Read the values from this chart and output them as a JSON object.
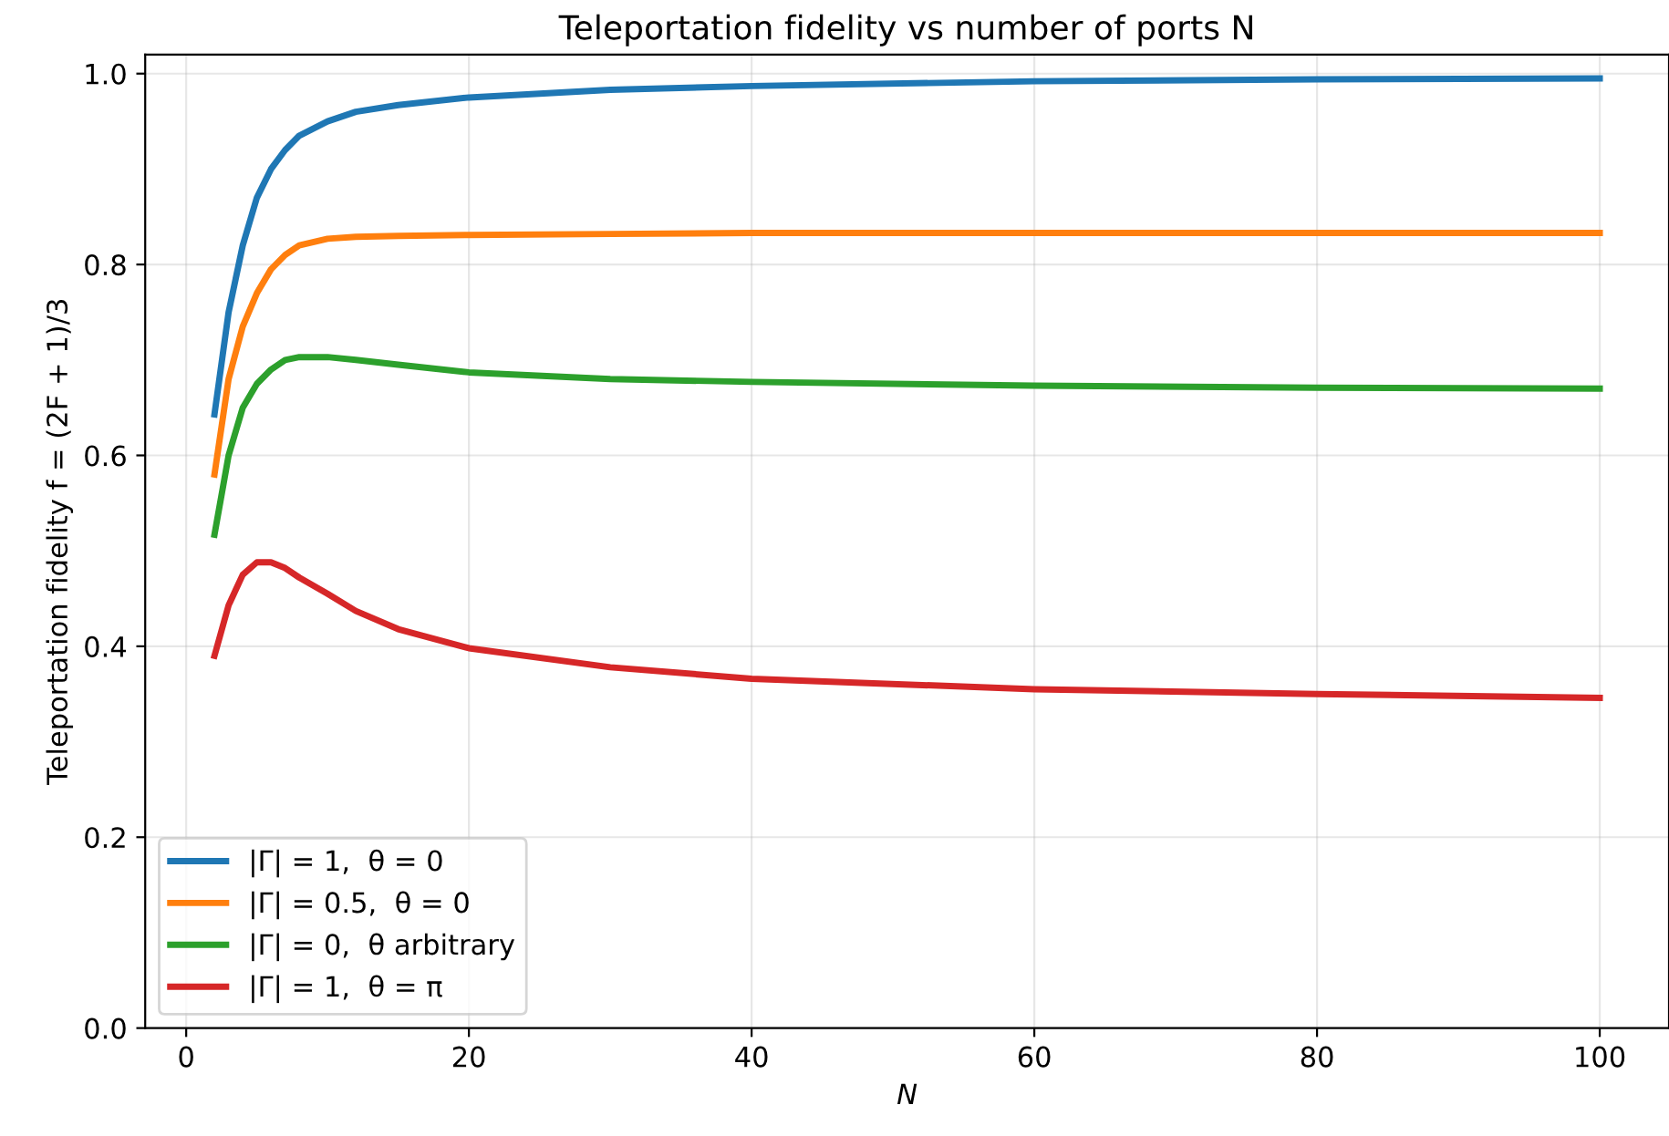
{
  "chart_data": {
    "type": "line",
    "title": "Teleportation fidelity vs number of ports N",
    "xlabel": "N",
    "ylabel": "Teleportation fidelity f = (2F + 1)/3",
    "x": [
      2,
      3,
      4,
      5,
      6,
      7,
      8,
      10,
      12,
      15,
      20,
      30,
      40,
      60,
      80,
      100
    ],
    "series": [
      {
        "name": "|Γ| = 1,  θ = 0",
        "color": "#1f77b4",
        "values": [
          0.643,
          0.75,
          0.82,
          0.87,
          0.9,
          0.92,
          0.935,
          0.95,
          0.96,
          0.967,
          0.975,
          0.983,
          0.987,
          0.992,
          0.994,
          0.995
        ]
      },
      {
        "name": "|Γ| = 0.5,  θ = 0",
        "color": "#ff7f0e",
        "values": [
          0.58,
          0.68,
          0.735,
          0.77,
          0.795,
          0.81,
          0.82,
          0.827,
          0.829,
          0.83,
          0.831,
          0.832,
          0.833,
          0.833,
          0.833,
          0.833
        ]
      },
      {
        "name": "|Γ| = 0,  θ arbitrary",
        "color": "#2ca02c",
        "values": [
          0.517,
          0.6,
          0.65,
          0.675,
          0.69,
          0.7,
          0.703,
          0.703,
          0.7,
          0.695,
          0.687,
          0.68,
          0.677,
          0.673,
          0.671,
          0.67
        ]
      },
      {
        "name": "|Γ| = 1,  θ = π",
        "color": "#d62728",
        "values": [
          0.39,
          0.443,
          0.475,
          0.488,
          0.488,
          0.482,
          0.472,
          0.455,
          0.437,
          0.418,
          0.398,
          0.378,
          0.366,
          0.355,
          0.35,
          0.346
        ]
      }
    ],
    "xlim": [
      -2.9,
      104.9
    ],
    "ylim": [
      0,
      1.02
    ],
    "xticks": [
      0,
      20,
      40,
      60,
      80,
      100
    ],
    "yticks": [
      {
        "value": 0,
        "label": "0.0"
      },
      0.2,
      0.4,
      0.6,
      0.8,
      {
        "value": 1,
        "label": "1.0"
      }
    ],
    "grid": true,
    "legend": "bottom left",
    "marker": "none",
    "line_style": "solid"
  }
}
